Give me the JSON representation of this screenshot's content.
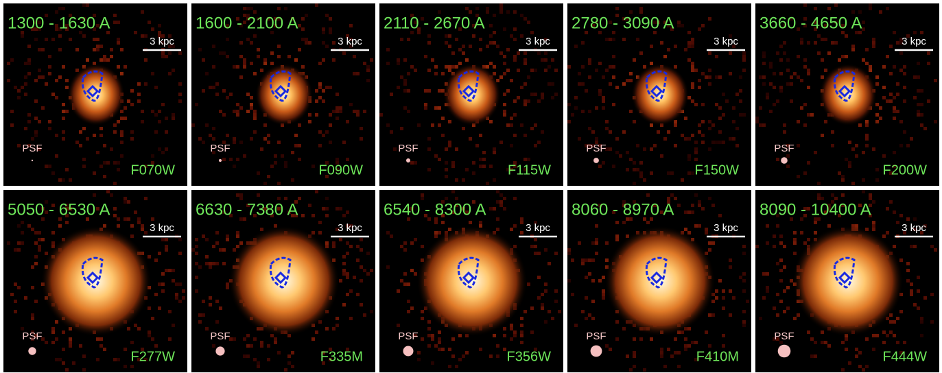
{
  "panels": [
    {
      "wavelength": "1300 - 1630 A",
      "filter": "F070W",
      "psf": "PSF",
      "scale": "3 kpc"
    },
    {
      "wavelength": "1600 - 2100 A",
      "filter": "F090W",
      "psf": "PSF",
      "scale": "3 kpc"
    },
    {
      "wavelength": "2110 - 2670 A",
      "filter": "F115W",
      "psf": "PSF",
      "scale": "3 kpc"
    },
    {
      "wavelength": "2780 - 3090 A",
      "filter": "F150W",
      "psf": "PSF",
      "scale": "3 kpc"
    },
    {
      "wavelength": "3660 - 4650 A",
      "filter": "F200W",
      "psf": "PSF",
      "scale": "3 kpc"
    },
    {
      "wavelength": "5050 - 6530 A",
      "filter": "F277W",
      "psf": "PSF",
      "scale": "3 kpc"
    },
    {
      "wavelength": "6630 - 7380 A",
      "filter": "F335M",
      "psf": "PSF",
      "scale": "3 kpc"
    },
    {
      "wavelength": "6540 - 8300 A",
      "filter": "F356W",
      "psf": "PSF",
      "scale": "3 kpc"
    },
    {
      "wavelength": "8060 - 8970 A",
      "filter": "F410M",
      "psf": "PSF",
      "scale": "3 kpc"
    },
    {
      "wavelength": "8090 - 10400 A",
      "filter": "F444W",
      "psf": "PSF",
      "scale": "3 kpc"
    }
  ]
}
